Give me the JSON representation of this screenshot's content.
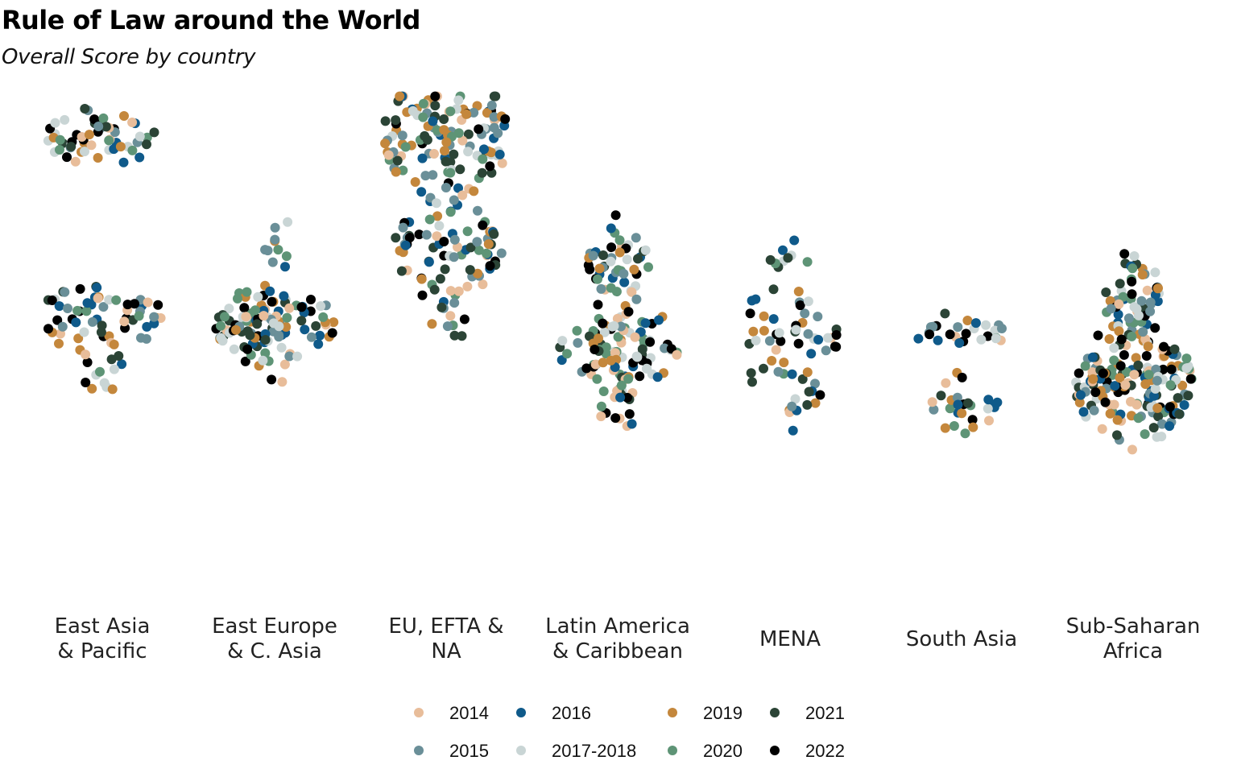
{
  "chart_data": {
    "type": "scatter",
    "title": "Rule of Law around the World",
    "subtitle": "Overall Score by country",
    "xlabel": "",
    "ylabel": "",
    "grid": false,
    "legend_position": "bottom",
    "categories": [
      {
        "key": "eap",
        "lines": [
          "East Asia",
          "& Pacific"
        ]
      },
      {
        "key": "eeca",
        "lines": [
          "East Europe",
          "& C. Asia"
        ]
      },
      {
        "key": "eu",
        "lines": [
          "EU, EFTA &",
          "NA"
        ]
      },
      {
        "key": "lac",
        "lines": [
          "Latin America",
          "& Caribbean"
        ]
      },
      {
        "key": "mena",
        "lines": [
          "MENA"
        ]
      },
      {
        "key": "sa",
        "lines": [
          "South Asia"
        ]
      },
      {
        "key": "ssa",
        "lines": [
          "Sub-Saharan",
          "Africa"
        ]
      }
    ],
    "series": [
      {
        "name": "2014",
        "color": "#e8bd9a"
      },
      {
        "name": "2015",
        "color": "#6a8f98"
      },
      {
        "name": "2016",
        "color": "#0f5a8a"
      },
      {
        "name": "2017-2018",
        "color": "#c9d5d5"
      },
      {
        "name": "2019",
        "color": "#c4873c"
      },
      {
        "name": "2020",
        "color": "#5e9476"
      },
      {
        "name": "2021",
        "color": "#2b4436"
      },
      {
        "name": "2022",
        "color": "#000000"
      }
    ],
    "ylim": [
      0.25,
      0.92
    ],
    "clusters": [
      {
        "cat": 0,
        "y": 0.86,
        "sd": 0.018,
        "n": 56,
        "spread": 70
      },
      {
        "cat": 0,
        "y": 0.62,
        "sd": 0.025,
        "n": 60,
        "spread": 80
      },
      {
        "cat": 0,
        "y": 0.55,
        "sd": 0.025,
        "n": 14,
        "spread": 25
      },
      {
        "cat": 1,
        "y": 0.61,
        "sd": 0.025,
        "n": 110,
        "spread": 75
      },
      {
        "cat": 1,
        "y": 0.71,
        "sd": 0.035,
        "n": 12,
        "spread": 20
      },
      {
        "cat": 2,
        "y": 0.86,
        "sd": 0.04,
        "n": 130,
        "spread": 80
      },
      {
        "cat": 2,
        "y": 0.71,
        "sd": 0.03,
        "n": 75,
        "spread": 70
      },
      {
        "cat": 2,
        "y": 0.62,
        "sd": 0.02,
        "n": 12,
        "spread": 25
      },
      {
        "cat": 3,
        "y": 0.69,
        "sd": 0.025,
        "n": 45,
        "spread": 40
      },
      {
        "cat": 3,
        "y": 0.58,
        "sd": 0.03,
        "n": 90,
        "spread": 75
      },
      {
        "cat": 3,
        "y": 0.51,
        "sd": 0.03,
        "n": 24,
        "spread": 25
      },
      {
        "cat": 4,
        "y": 0.59,
        "sd": 0.045,
        "n": 55,
        "spread": 60
      },
      {
        "cat": 4,
        "y": 0.7,
        "sd": 0.01,
        "n": 8,
        "spread": 25
      },
      {
        "cat": 4,
        "y": 0.49,
        "sd": 0.01,
        "n": 6,
        "spread": 15
      },
      {
        "cat": 5,
        "y": 0.6,
        "sd": 0.01,
        "n": 26,
        "spread": 65
      },
      {
        "cat": 5,
        "y": 0.5,
        "sd": 0.015,
        "n": 26,
        "spread": 45
      },
      {
        "cat": 6,
        "y": 0.64,
        "sd": 0.03,
        "n": 60,
        "spread": 35
      },
      {
        "cat": 6,
        "y": 0.53,
        "sd": 0.035,
        "n": 170,
        "spread": 75
      }
    ]
  }
}
